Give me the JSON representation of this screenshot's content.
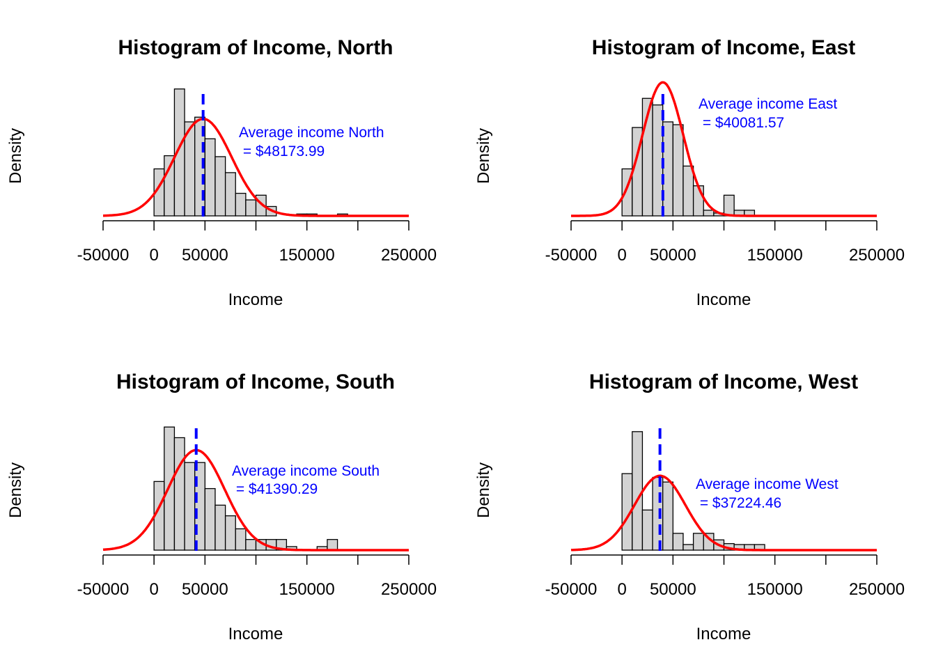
{
  "chart_data": [
    {
      "type": "histogram",
      "title": "Histogram of Income, North",
      "xlabel": "Income",
      "ylabel": "Density",
      "xlim": [
        -50000,
        250000
      ],
      "xticks": [
        -50000,
        0,
        50000,
        150000,
        250000
      ],
      "bin_width": 10000,
      "bins_start": 0,
      "densities": [
        0.5,
        0.64,
        1.35,
        1.0,
        1.05,
        0.82,
        0.63,
        0.46,
        0.24,
        0.17,
        0.22,
        0.1,
        0,
        0,
        0.02,
        0.02,
        0,
        0,
        0.02
      ],
      "mean": 48173.99,
      "sd": 28000,
      "annotation": {
        "line1": "Average income North",
        "line2": " = $48173.99"
      },
      "colors": {
        "bars": "#d3d3d3",
        "curve": "#ff0000",
        "mean_line": "#0000ff"
      }
    },
    {
      "type": "histogram",
      "title": "Histogram of Income, East",
      "xlabel": "Income",
      "ylabel": "Density",
      "xlim": [
        -50000,
        250000
      ],
      "xticks": [
        -50000,
        0,
        50000,
        150000,
        250000
      ],
      "bin_width": 10000,
      "bins_start": 0,
      "densities": [
        0.5,
        0.94,
        1.25,
        1.18,
        1.0,
        0.97,
        0.53,
        0.32,
        0.06,
        0.03,
        0.22,
        0.06,
        0.06
      ],
      "mean": 40081.57,
      "sd": 20000,
      "annotation": {
        "line1": "Average income East",
        "line2": " = $40081.57"
      },
      "colors": {
        "bars": "#d3d3d3",
        "curve": "#ff0000",
        "mean_line": "#0000ff"
      }
    },
    {
      "type": "histogram",
      "title": "Histogram of Income, South",
      "xlabel": "Income",
      "ylabel": "Density",
      "xlim": [
        -50000,
        250000
      ],
      "xticks": [
        -50000,
        0,
        50000,
        150000,
        250000
      ],
      "bin_width": 10000,
      "bins_start": 0,
      "densities": [
        0.58,
        1.04,
        0.95,
        0.74,
        0.74,
        0.52,
        0.38,
        0.29,
        0.18,
        0.09,
        0.09,
        0.09,
        0.09,
        0.03,
        0,
        0,
        0.03,
        0.09
      ],
      "mean": 41390.29,
      "sd": 28000,
      "annotation": {
        "line1": "Average income South",
        "line2": " = $41390.29"
      },
      "colors": {
        "bars": "#d3d3d3",
        "curve": "#ff0000",
        "mean_line": "#0000ff"
      }
    },
    {
      "type": "histogram",
      "title": "Histogram of Income, West",
      "xlabel": "Income",
      "ylabel": "Density",
      "xlim": [
        -50000,
        250000
      ],
      "xticks": [
        -50000,
        0,
        50000,
        150000,
        250000
      ],
      "bin_width": 10000,
      "bins_start": 0,
      "densities": [
        0.82,
        1.27,
        0.43,
        0.78,
        0.73,
        0.18,
        0.06,
        0.18,
        0.18,
        0.11,
        0.07,
        0.06,
        0.06,
        0.06
      ],
      "mean": 37224.46,
      "sd": 25000,
      "annotation": {
        "line1": "Average income West",
        "line2": " = $37224.46"
      },
      "colors": {
        "bars": "#d3d3d3",
        "curve": "#ff0000",
        "mean_line": "#0000ff"
      }
    }
  ]
}
